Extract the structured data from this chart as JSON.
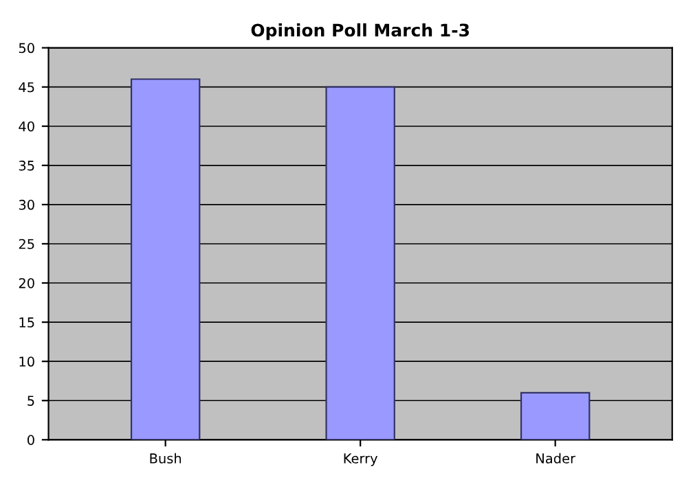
{
  "chart_data": {
    "type": "bar",
    "title": "Opinion Poll March 1-3",
    "categories": [
      "Bush",
      "Kerry",
      "Nader"
    ],
    "series": [
      {
        "color": "#9999ff",
        "values": [
          46,
          45,
          6
        ]
      }
    ],
    "ylim": [
      0,
      50
    ],
    "yticks": [
      0,
      5,
      10,
      15,
      20,
      25,
      30,
      35,
      40,
      45,
      50
    ],
    "grid": "y",
    "legend": false
  }
}
